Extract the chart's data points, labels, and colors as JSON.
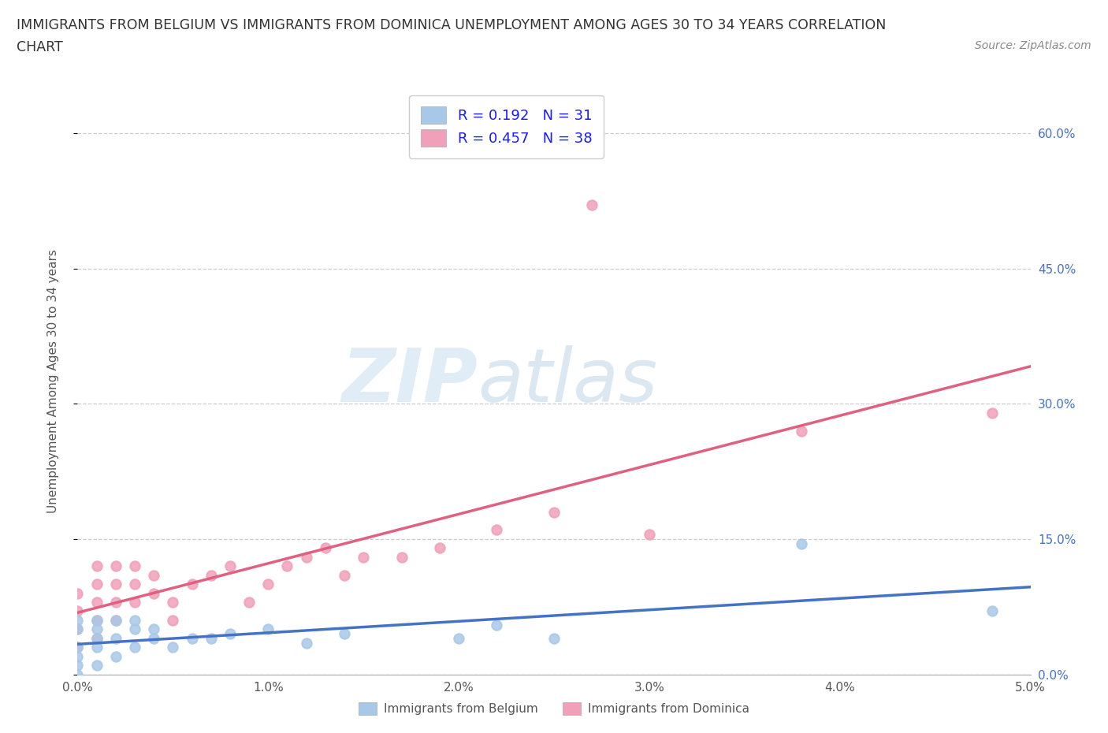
{
  "title_line1": "IMMIGRANTS FROM BELGIUM VS IMMIGRANTS FROM DOMINICA UNEMPLOYMENT AMONG AGES 30 TO 34 YEARS CORRELATION",
  "title_line2": "CHART",
  "source": "Source: ZipAtlas.com",
  "ylabel": "Unemployment Among Ages 30 to 34 years",
  "xlim": [
    0.0,
    0.05
  ],
  "ylim": [
    0.0,
    0.65
  ],
  "xticks": [
    0.0,
    0.01,
    0.02,
    0.03,
    0.04,
    0.05
  ],
  "xticklabels": [
    "0.0%",
    "1.0%",
    "2.0%",
    "3.0%",
    "4.0%",
    "5.0%"
  ],
  "yticks": [
    0.0,
    0.15,
    0.3,
    0.45,
    0.6
  ],
  "yticklabels": [
    "0.0%",
    "15.0%",
    "30.0%",
    "45.0%",
    "60.0%"
  ],
  "belgium_color": "#a8c8e8",
  "dominica_color": "#f0a0b8",
  "belgium_line_color": "#4472c4",
  "dominica_line_color": "#e06080",
  "belgium_R": 0.192,
  "belgium_N": 31,
  "dominica_R": 0.457,
  "dominica_N": 38,
  "watermark_zip": "ZIP",
  "watermark_atlas": "atlas",
  "background_color": "#ffffff",
  "grid_color": "#cccccc",
  "belgium_x": [
    0.0,
    0.0,
    0.0,
    0.0,
    0.0,
    0.0,
    0.001,
    0.001,
    0.001,
    0.001,
    0.001,
    0.002,
    0.002,
    0.002,
    0.003,
    0.003,
    0.003,
    0.004,
    0.004,
    0.005,
    0.006,
    0.007,
    0.008,
    0.01,
    0.012,
    0.014,
    0.02,
    0.022,
    0.025,
    0.038,
    0.048
  ],
  "belgium_y": [
    0.0,
    0.01,
    0.02,
    0.03,
    0.05,
    0.06,
    0.01,
    0.03,
    0.04,
    0.05,
    0.06,
    0.02,
    0.04,
    0.06,
    0.03,
    0.05,
    0.06,
    0.04,
    0.05,
    0.03,
    0.04,
    0.04,
    0.045,
    0.05,
    0.035,
    0.045,
    0.04,
    0.055,
    0.04,
    0.145,
    0.07
  ],
  "dominica_x": [
    0.0,
    0.0,
    0.0,
    0.0,
    0.001,
    0.001,
    0.001,
    0.001,
    0.001,
    0.002,
    0.002,
    0.002,
    0.002,
    0.003,
    0.003,
    0.003,
    0.004,
    0.004,
    0.005,
    0.005,
    0.006,
    0.007,
    0.008,
    0.009,
    0.01,
    0.011,
    0.012,
    0.013,
    0.014,
    0.015,
    0.017,
    0.019,
    0.022,
    0.025,
    0.027,
    0.03,
    0.038,
    0.048
  ],
  "dominica_y": [
    0.03,
    0.05,
    0.07,
    0.09,
    0.04,
    0.06,
    0.08,
    0.1,
    0.12,
    0.06,
    0.08,
    0.1,
    0.12,
    0.08,
    0.1,
    0.12,
    0.09,
    0.11,
    0.06,
    0.08,
    0.1,
    0.11,
    0.12,
    0.08,
    0.1,
    0.12,
    0.13,
    0.14,
    0.11,
    0.13,
    0.13,
    0.14,
    0.16,
    0.18,
    0.52,
    0.155,
    0.27,
    0.29
  ]
}
